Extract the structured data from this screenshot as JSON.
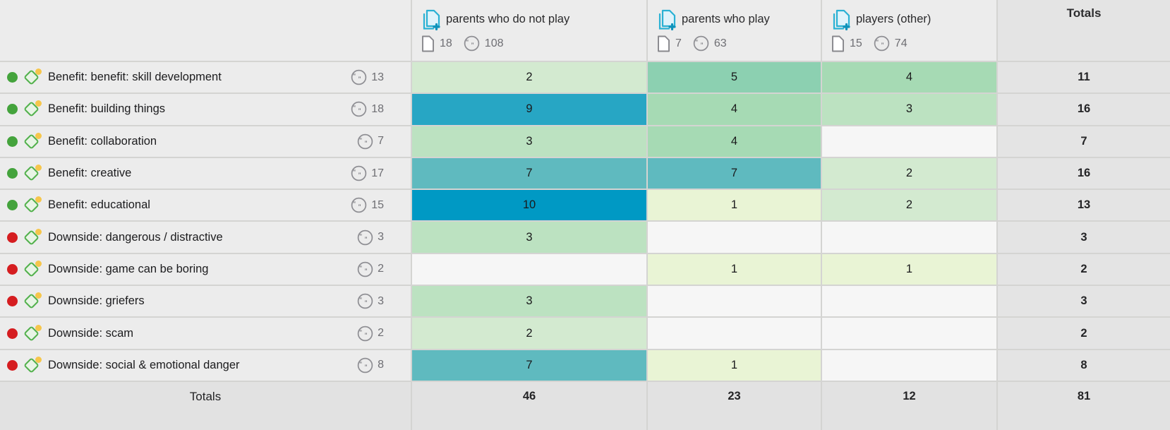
{
  "table": {
    "columns": [
      {
        "label": "parents who do not play",
        "documents": "18",
        "quotes": "108"
      },
      {
        "label": "parents who play",
        "documents": "7",
        "quotes": "63"
      },
      {
        "label": "players (other)",
        "documents": "15",
        "quotes": "74"
      }
    ],
    "totals_header": "Totals",
    "totals_row_label": "Totals",
    "rows": [
      {
        "status": "green",
        "label": "Benefit: benefit: skill development",
        "quotes": "13",
        "cells": [
          "2",
          "5",
          "4"
        ],
        "total": "11"
      },
      {
        "status": "green",
        "label": "Benefit: building things",
        "quotes": "18",
        "cells": [
          "9",
          "4",
          "3"
        ],
        "total": "16"
      },
      {
        "status": "green",
        "label": "Benefit: collaboration",
        "quotes": "7",
        "cells": [
          "3",
          "4",
          ""
        ],
        "total": "7"
      },
      {
        "status": "green",
        "label": "Benefit: creative",
        "quotes": "17",
        "cells": [
          "7",
          "7",
          "2"
        ],
        "total": "16"
      },
      {
        "status": "green",
        "label": "Benefit: educational",
        "quotes": "15",
        "cells": [
          "10",
          "1",
          "2"
        ],
        "total": "13"
      },
      {
        "status": "red",
        "label": "Downside: dangerous / distractive",
        "quotes": "3",
        "cells": [
          "3",
          "",
          ""
        ],
        "total": "3"
      },
      {
        "status": "red",
        "label": "Downside: game can be boring",
        "quotes": "2",
        "cells": [
          "",
          "1",
          "1"
        ],
        "total": "2"
      },
      {
        "status": "red",
        "label": "Downside: griefers",
        "quotes": "3",
        "cells": [
          "3",
          "",
          ""
        ],
        "total": "3"
      },
      {
        "status": "red",
        "label": "Downside: scam",
        "quotes": "2",
        "cells": [
          "2",
          "",
          ""
        ],
        "total": "2"
      },
      {
        "status": "red",
        "label": "Downside: social & emotional danger",
        "quotes": "8",
        "cells": [
          "7",
          "1",
          ""
        ],
        "total": "8"
      }
    ],
    "column_totals": [
      "46",
      "23",
      "12"
    ],
    "grand_total": "81"
  },
  "icons": {
    "document_group": "stacked-pages-with-plus",
    "document": "single-page",
    "quote_count": "quotation-marks-in-circle",
    "code": "green-diamond-with-yellow-dot",
    "status": "solid-circle"
  },
  "colors": {
    "heat": {
      "1": "#e9f4d5",
      "2": "#d3ead0",
      "3": "#bce2c1",
      "4": "#a6dab4",
      "5": "#8cd0b1",
      "7": "#5fbabf",
      "9": "#27a6c4",
      "10": "#0099c4"
    },
    "empty_cell": "#f6f6f6",
    "status_green": "#44a33c",
    "status_red": "#d51d20",
    "document_group_icon": "#29b1d4",
    "header_bg": "#ececec",
    "totals_bg": "#e4e4e4",
    "grid_line": "#d4d4d2"
  }
}
